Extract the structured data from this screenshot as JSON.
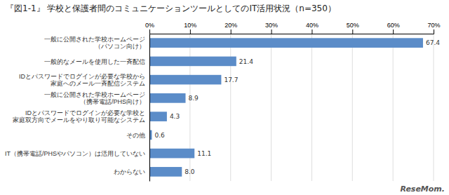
{
  "chart_data": {
    "type": "bar",
    "orientation": "horizontal",
    "title": "『図1-1』  学校と保護者間のコミュニケーションツールとしてのIT活用状況（n=350）",
    "categories": [
      "一般に公開された学校ホームページ\n（パソコン向け）",
      "一般的なメールを使用した一斉配信",
      "IDとパスワードでログインが必要な学校から\n家庭へのメール一斉配信システム",
      "一般に公開された学校ホームページ\n（携帯電話/PHS向け）",
      "IDとパスワードでログインが必要な学校と\n家庭双方向でメールをやり取り可能なシステム",
      "その他",
      "IT（携帯電話/PHSやパソコン）は活用していない",
      "わからない"
    ],
    "values": [
      67.4,
      21.4,
      17.7,
      8.9,
      4.3,
      0.6,
      11.1,
      8.0
    ],
    "value_labels": [
      "67.4",
      "21.4",
      "17.7",
      "8.9",
      "4.3",
      "0.6",
      "11.1",
      "8.0"
    ],
    "data_labels": true,
    "color": "#5b8cc8",
    "xlim": [
      0,
      70
    ],
    "xticks": [
      {
        "value": 0,
        "label": "0%"
      },
      {
        "value": 10,
        "label": "10%"
      },
      {
        "value": 20,
        "label": "20%"
      },
      {
        "value": 30,
        "label": "30%"
      },
      {
        "value": 40,
        "label": "40%"
      },
      {
        "value": 50,
        "label": "50%"
      },
      {
        "value": 60,
        "label": "60%"
      },
      {
        "value": 70,
        "label": "70%"
      }
    ],
    "grid": true,
    "annotations": [
      "ReseMom."
    ]
  }
}
